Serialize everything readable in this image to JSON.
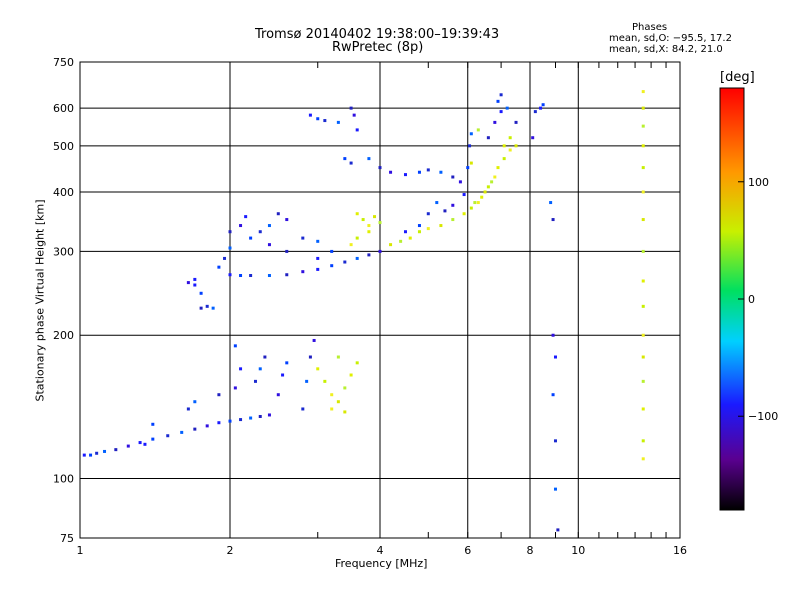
{
  "chart_data": {
    "type": "scatter",
    "title": "Tromsø 20140402 19:38:00–19:39:43",
    "subtitle": "RwPretec (8p)",
    "xlabel": "Frequency [MHz]",
    "ylabel": "Stationary phase Virtual Height [km]",
    "x_scale": "log",
    "y_scale": "log",
    "xlim": [
      1,
      16
    ],
    "ylim": [
      75,
      750
    ],
    "x_ticks": [
      1,
      2,
      4,
      6,
      8,
      10,
      16
    ],
    "x_tick_labels": [
      "1",
      "2",
      "4",
      "6",
      "8",
      "10",
      "16"
    ],
    "y_ticks": [
      75,
      100,
      200,
      300,
      400,
      500,
      600,
      750
    ],
    "y_tick_labels": [
      "75",
      "100",
      "200",
      "300",
      "400",
      "500",
      "600",
      "750"
    ],
    "grid": true,
    "phase_stats": {
      "header": "Phases",
      "line1": "mean, sd,O: −95.5, 17.2",
      "line2": "mean, sd,X:  84.2, 21.0"
    },
    "colorbar": {
      "label": "[deg]",
      "ticks": [
        100,
        0,
        -100
      ],
      "tick_labels": [
        "100",
        "0",
        "−100"
      ],
      "range": [
        -180,
        180
      ]
    },
    "series": [
      {
        "values": [
          [
            1.02,
            112
          ],
          [
            1.05,
            112
          ],
          [
            1.08,
            113
          ],
          [
            1.12,
            114
          ],
          [
            1.18,
            115
          ],
          [
            1.25,
            117
          ],
          [
            1.32,
            119
          ],
          [
            1.4,
            121
          ],
          [
            1.5,
            123
          ],
          [
            1.6,
            125
          ],
          [
            1.7,
            127
          ],
          [
            1.8,
            129
          ],
          [
            1.9,
            131
          ],
          [
            2.0,
            132
          ],
          [
            2.1,
            133
          ],
          [
            2.2,
            134
          ],
          [
            2.3,
            135
          ],
          [
            2.4,
            136
          ],
          [
            1.35,
            118
          ],
          [
            1.4,
            130
          ],
          [
            1.65,
            140
          ],
          [
            1.7,
            145
          ],
          [
            1.9,
            150
          ],
          [
            2.05,
            155
          ],
          [
            2.1,
            170
          ],
          [
            2.05,
            190
          ],
          [
            2.25,
            160
          ],
          [
            2.3,
            170
          ],
          [
            2.35,
            180
          ],
          [
            2.5,
            150
          ],
          [
            2.55,
            165
          ],
          [
            2.6,
            175
          ],
          [
            2.8,
            140
          ],
          [
            2.85,
            160
          ],
          [
            2.9,
            180
          ],
          [
            2.95,
            195
          ],
          [
            1.7,
            255
          ],
          [
            1.75,
            245
          ],
          [
            1.8,
            230
          ],
          [
            1.85,
            228
          ],
          [
            1.75,
            228
          ],
          [
            1.65,
            258
          ],
          [
            1.7,
            262
          ],
          [
            1.9,
            278
          ],
          [
            1.95,
            290
          ],
          [
            2.0,
            305
          ],
          [
            2.0,
            330
          ],
          [
            2.1,
            340
          ],
          [
            2.15,
            355
          ],
          [
            2.2,
            320
          ],
          [
            2.3,
            330
          ],
          [
            2.4,
            340
          ],
          [
            2.5,
            360
          ],
          [
            2.6,
            350
          ],
          [
            2.0,
            268
          ],
          [
            2.1,
            267
          ],
          [
            2.2,
            267
          ],
          [
            2.4,
            267
          ],
          [
            2.6,
            268
          ],
          [
            2.8,
            272
          ],
          [
            3.0,
            275
          ],
          [
            3.2,
            280
          ],
          [
            3.4,
            285
          ],
          [
            3.6,
            290
          ],
          [
            3.8,
            295
          ],
          [
            4.0,
            300
          ],
          [
            3.0,
            290
          ],
          [
            3.2,
            300
          ],
          [
            2.8,
            320
          ],
          [
            3.0,
            315
          ],
          [
            2.6,
            300
          ],
          [
            2.4,
            310
          ],
          [
            2.9,
            580
          ],
          [
            3.0,
            570
          ],
          [
            3.1,
            565
          ],
          [
            3.3,
            560
          ],
          [
            3.5,
            600
          ],
          [
            3.55,
            580
          ],
          [
            3.6,
            540
          ],
          [
            3.4,
            470
          ],
          [
            3.5,
            460
          ],
          [
            3.8,
            470
          ],
          [
            4.0,
            450
          ],
          [
            4.2,
            440
          ],
          [
            4.5,
            435
          ],
          [
            4.8,
            440
          ],
          [
            5.0,
            445
          ],
          [
            5.3,
            440
          ],
          [
            5.6,
            430
          ],
          [
            5.8,
            420
          ],
          [
            4.5,
            330
          ],
          [
            4.8,
            340
          ],
          [
            5.0,
            360
          ],
          [
            5.2,
            380
          ],
          [
            5.4,
            365
          ],
          [
            5.6,
            375
          ],
          [
            5.9,
            395
          ],
          [
            6.0,
            450
          ],
          [
            6.05,
            500
          ],
          [
            6.1,
            530
          ],
          [
            6.6,
            520
          ],
          [
            6.8,
            560
          ],
          [
            7.0,
            590
          ],
          [
            6.9,
            620
          ],
          [
            7.0,
            640
          ],
          [
            7.2,
            600
          ],
          [
            7.5,
            560
          ],
          [
            8.1,
            520
          ],
          [
            8.4,
            600
          ],
          [
            8.5,
            610
          ],
          [
            8.2,
            590
          ],
          [
            8.8,
            380
          ],
          [
            8.9,
            350
          ],
          [
            8.9,
            200
          ],
          [
            9.0,
            180
          ],
          [
            8.9,
            150
          ],
          [
            9.0,
            120
          ],
          [
            9.0,
            95
          ],
          [
            9.1,
            78
          ]
        ],
        "phase": "O"
      },
      {
        "values": [
          [
            3.0,
            170
          ],
          [
            3.1,
            160
          ],
          [
            3.2,
            150
          ],
          [
            3.3,
            145
          ],
          [
            3.4,
            155
          ],
          [
            3.5,
            165
          ],
          [
            3.6,
            175
          ],
          [
            3.2,
            140
          ],
          [
            3.4,
            138
          ],
          [
            3.3,
            180
          ],
          [
            3.6,
            360
          ],
          [
            3.7,
            350
          ],
          [
            3.8,
            340
          ],
          [
            3.9,
            355
          ],
          [
            4.0,
            345
          ],
          [
            3.8,
            330
          ],
          [
            3.6,
            320
          ],
          [
            3.5,
            310
          ],
          [
            4.2,
            310
          ],
          [
            4.4,
            315
          ],
          [
            4.6,
            320
          ],
          [
            4.8,
            330
          ],
          [
            5.0,
            335
          ],
          [
            5.3,
            340
          ],
          [
            5.6,
            350
          ],
          [
            5.9,
            360
          ],
          [
            6.1,
            370
          ],
          [
            6.3,
            380
          ],
          [
            6.5,
            400
          ],
          [
            6.7,
            420
          ],
          [
            6.9,
            450
          ],
          [
            7.1,
            470
          ],
          [
            7.3,
            490
          ],
          [
            7.5,
            500
          ],
          [
            6.2,
            380
          ],
          [
            6.4,
            390
          ],
          [
            6.6,
            410
          ],
          [
            6.8,
            430
          ],
          [
            6.1,
            460
          ],
          [
            6.3,
            540
          ],
          [
            7.1,
            500
          ],
          [
            7.3,
            520
          ],
          [
            13.5,
            650
          ],
          [
            13.5,
            600
          ],
          [
            13.5,
            550
          ],
          [
            13.5,
            500
          ],
          [
            13.5,
            450
          ],
          [
            13.5,
            400
          ],
          [
            13.5,
            350
          ],
          [
            13.5,
            300
          ],
          [
            13.5,
            260
          ],
          [
            13.5,
            230
          ],
          [
            13.5,
            200
          ],
          [
            13.5,
            180
          ],
          [
            13.5,
            160
          ],
          [
            13.5,
            140
          ],
          [
            13.5,
            120
          ],
          [
            13.5,
            110
          ]
        ],
        "phase": "X"
      }
    ]
  }
}
